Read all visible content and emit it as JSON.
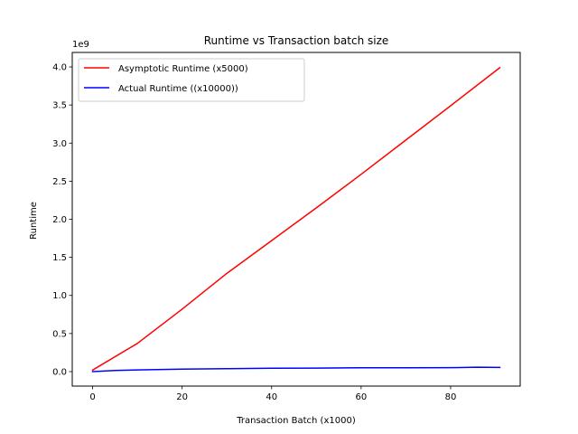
{
  "chart_data": {
    "type": "line",
    "title": "Runtime vs Transaction batch size",
    "xlabel": "Transaction Batch (x1000)",
    "ylabel": "Runtime",
    "y_offset_label": "1e9",
    "xlim": [
      -4.55,
      95.55
    ],
    "ylim": [
      -0.19,
      4.19
    ],
    "xticks": [
      0,
      20,
      40,
      60,
      80
    ],
    "xtick_labels": [
      "0",
      "20",
      "40",
      "60",
      "80"
    ],
    "yticks": [
      0.0,
      0.5,
      1.0,
      1.5,
      2.0,
      2.5,
      3.0,
      3.5,
      4.0
    ],
    "ytick_labels": [
      "0.0",
      "0.5",
      "1.0",
      "1.5",
      "2.0",
      "2.5",
      "3.0",
      "3.5",
      "4.0"
    ],
    "grid": false,
    "legend_position": "top-left",
    "series": [
      {
        "name": "Asymptotic Runtime (x5000)",
        "color": "#ff0000",
        "x": [
          0,
          10,
          20,
          30,
          40,
          50,
          60,
          70,
          80,
          91
        ],
        "y": [
          0.02,
          0.37,
          0.82,
          1.29,
          1.72,
          2.15,
          2.59,
          3.04,
          3.49,
          3.99
        ]
      },
      {
        "name": "Actual Runtime ((x10000))",
        "color": "#0000ff",
        "x": [
          0,
          5,
          10,
          20,
          30,
          40,
          50,
          60,
          70,
          80,
          86,
          91
        ],
        "y": [
          0.0,
          0.015,
          0.022,
          0.032,
          0.038,
          0.045,
          0.046,
          0.05,
          0.051,
          0.052,
          0.058,
          0.055
        ]
      }
    ]
  }
}
